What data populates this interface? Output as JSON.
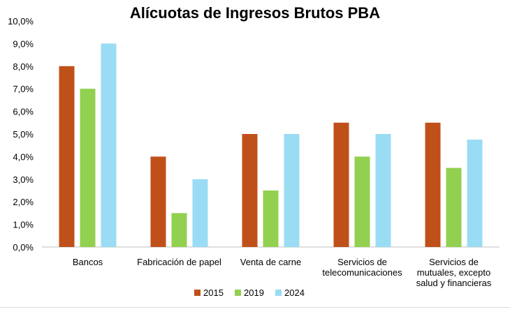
{
  "chart_data": {
    "type": "bar",
    "title": "Alícuotas de Ingresos Brutos PBA",
    "xlabel": "",
    "ylabel": "",
    "ylim": [
      0,
      10
    ],
    "yticks": [
      "0,0%",
      "1,0%",
      "2,0%",
      "3,0%",
      "4,0%",
      "5,0%",
      "6,0%",
      "7,0%",
      "8,0%",
      "9,0%",
      "10,0%"
    ],
    "categories": [
      [
        "Bancos"
      ],
      [
        "Fabricación de papel"
      ],
      [
        "Venta de carne"
      ],
      [
        "Servicios de",
        "telecomunicaciones"
      ],
      [
        "Servicios de",
        "mutuales, excepto",
        "salud y financieras"
      ]
    ],
    "series": [
      {
        "name": "2015",
        "color": "#c0501a",
        "values": [
          8.0,
          4.0,
          5.0,
          5.5,
          5.5
        ]
      },
      {
        "name": "2019",
        "color": "#92d050",
        "values": [
          7.0,
          1.5,
          2.5,
          4.0,
          3.5
        ]
      },
      {
        "name": "2024",
        "color": "#99dcf4",
        "values": [
          9.0,
          3.0,
          5.0,
          5.0,
          4.75
        ]
      }
    ],
    "grid": false,
    "legend": "bottom"
  }
}
